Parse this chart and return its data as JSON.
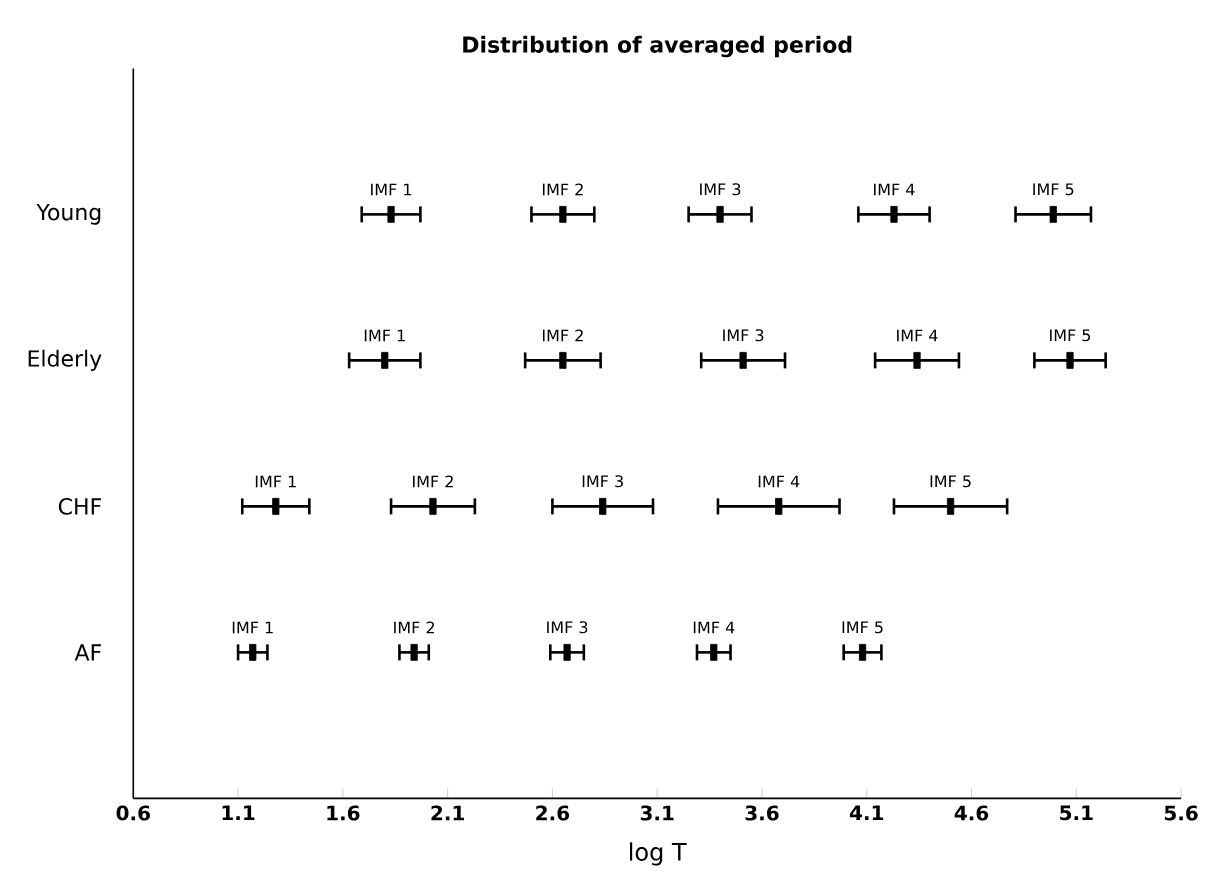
{
  "chart_data": {
    "type": "scatter",
    "orientation": "horizontal",
    "title": "Distribution of averaged period",
    "xlabel": "log T",
    "categories": [
      "Young",
      "Elderly",
      "CHF",
      "AF"
    ],
    "xlim": [
      0.6,
      5.6
    ],
    "xticks": [
      0.6,
      1.1,
      1.6,
      2.1,
      2.6,
      3.1,
      3.6,
      4.1,
      4.6,
      5.1,
      5.6
    ],
    "series": [
      {
        "name": "IMF 1",
        "color": "#000000",
        "values": [
          1.83,
          1.8,
          1.28,
          1.17
        ],
        "errors": [
          0.14,
          0.17,
          0.16,
          0.07
        ]
      },
      {
        "name": "IMF 2",
        "color": "#000000",
        "values": [
          2.65,
          2.65,
          2.03,
          1.94
        ],
        "errors": [
          0.15,
          0.18,
          0.2,
          0.07
        ]
      },
      {
        "name": "IMF 3",
        "color": "#000000",
        "values": [
          3.4,
          3.51,
          2.84,
          2.67
        ],
        "errors": [
          0.15,
          0.2,
          0.24,
          0.08
        ]
      },
      {
        "name": "IMF 4",
        "color": "#000000",
        "values": [
          4.23,
          4.34,
          3.68,
          3.37
        ],
        "errors": [
          0.17,
          0.2,
          0.29,
          0.08
        ]
      },
      {
        "name": "IMF 5",
        "color": "#000000",
        "values": [
          4.99,
          5.07,
          4.5,
          4.08
        ],
        "errors": [
          0.18,
          0.17,
          0.27,
          0.09
        ]
      }
    ]
  }
}
